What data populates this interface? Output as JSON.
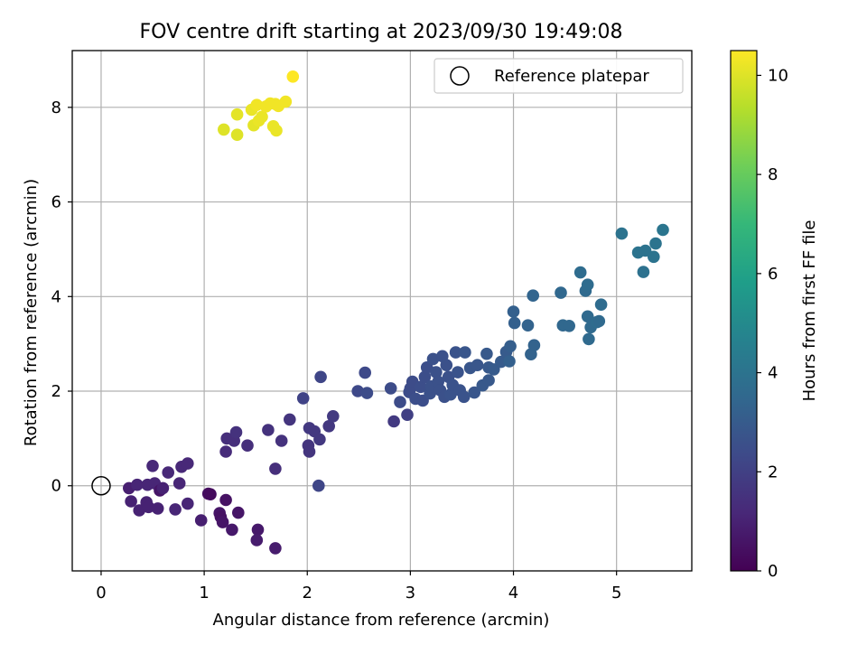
{
  "chart_data": {
    "type": "scatter",
    "title": "FOV centre drift starting at 2023/09/30 19:49:08",
    "xlabel": "Angular distance from reference (arcmin)",
    "ylabel": "Rotation from reference (arcmin)",
    "xlim": [
      -0.28,
      5.73
    ],
    "ylim": [
      -1.8,
      9.2
    ],
    "xticks": [
      0,
      1,
      2,
      3,
      4,
      5
    ],
    "yticks": [
      0,
      2,
      4,
      6,
      8
    ],
    "grid": true,
    "legend": {
      "placement": "top-right",
      "entries": [
        {
          "label": "Reference platepar",
          "marker": "open-circle"
        }
      ]
    },
    "reference_point": {
      "x": 0,
      "y": 0
    },
    "colorbar": {
      "label": "Hours from first FF file",
      "min": 0,
      "max": 10.5,
      "ticks": [
        0,
        2,
        4,
        6,
        8,
        10
      ],
      "colormap": "viridis",
      "stops": [
        "#440154",
        "#482878",
        "#3e4a89",
        "#31688e",
        "#26828e",
        "#1f9e89",
        "#35b779",
        "#6ece58",
        "#b5de2b",
        "#fde725"
      ]
    },
    "points": [
      {
        "x": 0.27,
        "y": -0.05,
        "t": 0.9
      },
      {
        "x": 0.29,
        "y": -0.33,
        "t": 1.0
      },
      {
        "x": 0.35,
        "y": 0.02,
        "t": 1.1
      },
      {
        "x": 0.37,
        "y": -0.52,
        "t": 1.0
      },
      {
        "x": 0.44,
        "y": -0.35,
        "t": 1.0
      },
      {
        "x": 0.45,
        "y": 0.02,
        "t": 1.1
      },
      {
        "x": 0.46,
        "y": -0.45,
        "t": 1.0
      },
      {
        "x": 0.5,
        "y": 0.42,
        "t": 1.2
      },
      {
        "x": 0.52,
        "y": 0.05,
        "t": 1.1
      },
      {
        "x": 0.55,
        "y": -0.48,
        "t": 1.0
      },
      {
        "x": 0.57,
        "y": -0.1,
        "t": 0.6
      },
      {
        "x": 0.6,
        "y": -0.05,
        "t": 1.0
      },
      {
        "x": 0.65,
        "y": 0.28,
        "t": 1.2
      },
      {
        "x": 0.72,
        "y": -0.5,
        "t": 1.1
      },
      {
        "x": 0.76,
        "y": 0.05,
        "t": 1.1
      },
      {
        "x": 0.78,
        "y": 0.4,
        "t": 1.2
      },
      {
        "x": 0.84,
        "y": 0.47,
        "t": 1.2
      },
      {
        "x": 0.84,
        "y": -0.38,
        "t": 1.1
      },
      {
        "x": 0.97,
        "y": -0.73,
        "t": 0.9
      },
      {
        "x": 1.04,
        "y": -0.17,
        "t": 0.4
      },
      {
        "x": 1.06,
        "y": -0.18,
        "t": 0.3
      },
      {
        "x": 1.15,
        "y": -0.58,
        "t": 0.6
      },
      {
        "x": 1.16,
        "y": -0.66,
        "t": 0.5
      },
      {
        "x": 1.18,
        "y": -0.77,
        "t": 0.6
      },
      {
        "x": 1.21,
        "y": -0.3,
        "t": 0.5
      },
      {
        "x": 1.27,
        "y": -0.93,
        "t": 0.7
      },
      {
        "x": 1.33,
        "y": -0.57,
        "t": 0.6
      },
      {
        "x": 1.52,
        "y": -0.93,
        "t": 0.7
      },
      {
        "x": 1.51,
        "y": -1.15,
        "t": 0.8
      },
      {
        "x": 1.69,
        "y": -1.32,
        "t": 0.8
      },
      {
        "x": 1.21,
        "y": 0.72,
        "t": 1.3
      },
      {
        "x": 1.22,
        "y": 1.0,
        "t": 1.4
      },
      {
        "x": 1.29,
        "y": 0.95,
        "t": 1.4
      },
      {
        "x": 1.31,
        "y": 1.13,
        "t": 1.5
      },
      {
        "x": 1.42,
        "y": 0.85,
        "t": 1.4
      },
      {
        "x": 1.62,
        "y": 1.18,
        "t": 1.5
      },
      {
        "x": 1.69,
        "y": 0.36,
        "t": 1.4
      },
      {
        "x": 1.75,
        "y": 0.95,
        "t": 1.5
      },
      {
        "x": 1.83,
        "y": 1.4,
        "t": 1.6
      },
      {
        "x": 2.01,
        "y": 0.85,
        "t": 1.6
      },
      {
        "x": 2.02,
        "y": 1.22,
        "t": 1.7
      },
      {
        "x": 2.02,
        "y": 0.72,
        "t": 1.6
      },
      {
        "x": 2.07,
        "y": 1.15,
        "t": 1.7
      },
      {
        "x": 2.12,
        "y": 0.98,
        "t": 1.7
      },
      {
        "x": 2.21,
        "y": 1.26,
        "t": 1.7
      },
      {
        "x": 2.25,
        "y": 1.47,
        "t": 1.8
      },
      {
        "x": 1.96,
        "y": 1.85,
        "t": 2.1
      },
      {
        "x": 2.11,
        "y": 0.0,
        "t": 2.2
      },
      {
        "x": 2.13,
        "y": 2.3,
        "t": 2.2
      },
      {
        "x": 2.49,
        "y": 2.0,
        "t": 2.3
      },
      {
        "x": 2.56,
        "y": 2.39,
        "t": 2.3
      },
      {
        "x": 2.58,
        "y": 1.96,
        "t": 2.4
      },
      {
        "x": 2.84,
        "y": 1.36,
        "t": 1.8
      },
      {
        "x": 2.81,
        "y": 2.06,
        "t": 2.4
      },
      {
        "x": 2.9,
        "y": 1.77,
        "t": 2.4
      },
      {
        "x": 2.97,
        "y": 1.5,
        "t": 2.0
      },
      {
        "x": 2.99,
        "y": 1.98,
        "t": 2.4
      },
      {
        "x": 3.0,
        "y": 2.06,
        "t": 2.4
      },
      {
        "x": 3.02,
        "y": 2.2,
        "t": 2.4
      },
      {
        "x": 3.05,
        "y": 1.84,
        "t": 2.5
      },
      {
        "x": 3.1,
        "y": 2.09,
        "t": 2.5
      },
      {
        "x": 3.12,
        "y": 1.8,
        "t": 2.5
      },
      {
        "x": 3.14,
        "y": 2.3,
        "t": 2.5
      },
      {
        "x": 3.16,
        "y": 2.5,
        "t": 2.5
      },
      {
        "x": 3.19,
        "y": 1.95,
        "t": 2.6
      },
      {
        "x": 3.2,
        "y": 2.1,
        "t": 2.6
      },
      {
        "x": 3.22,
        "y": 2.68,
        "t": 2.6
      },
      {
        "x": 3.25,
        "y": 2.4,
        "t": 2.6
      },
      {
        "x": 3.27,
        "y": 2.2,
        "t": 2.6
      },
      {
        "x": 3.29,
        "y": 2.02,
        "t": 2.6
      },
      {
        "x": 3.31,
        "y": 2.74,
        "t": 2.6
      },
      {
        "x": 3.33,
        "y": 1.88,
        "t": 2.6
      },
      {
        "x": 3.35,
        "y": 2.55,
        "t": 2.6
      },
      {
        "x": 3.37,
        "y": 2.3,
        "t": 2.6
      },
      {
        "x": 3.39,
        "y": 1.93,
        "t": 2.7
      },
      {
        "x": 3.41,
        "y": 2.13,
        "t": 2.7
      },
      {
        "x": 3.44,
        "y": 2.82,
        "t": 2.7
      },
      {
        "x": 3.46,
        "y": 2.4,
        "t": 2.7
      },
      {
        "x": 3.48,
        "y": 2.02,
        "t": 2.7
      },
      {
        "x": 3.52,
        "y": 1.88,
        "t": 2.7
      },
      {
        "x": 3.53,
        "y": 2.82,
        "t": 2.8
      },
      {
        "x": 3.58,
        "y": 2.49,
        "t": 2.8
      },
      {
        "x": 3.62,
        "y": 1.97,
        "t": 2.8
      },
      {
        "x": 3.65,
        "y": 2.55,
        "t": 2.8
      },
      {
        "x": 3.7,
        "y": 2.12,
        "t": 2.9
      },
      {
        "x": 3.74,
        "y": 2.79,
        "t": 2.9
      },
      {
        "x": 3.76,
        "y": 2.23,
        "t": 2.9
      },
      {
        "x": 3.76,
        "y": 2.5,
        "t": 2.9
      },
      {
        "x": 3.81,
        "y": 2.46,
        "t": 3.0
      },
      {
        "x": 3.88,
        "y": 2.62,
        "t": 3.0
      },
      {
        "x": 3.93,
        "y": 2.83,
        "t": 3.0
      },
      {
        "x": 3.97,
        "y": 2.95,
        "t": 3.1
      },
      {
        "x": 3.96,
        "y": 2.63,
        "t": 3.2
      },
      {
        "x": 4.0,
        "y": 3.68,
        "t": 3.2
      },
      {
        "x": 4.01,
        "y": 3.44,
        "t": 3.2
      },
      {
        "x": 4.14,
        "y": 3.39,
        "t": 3.3
      },
      {
        "x": 4.17,
        "y": 2.78,
        "t": 3.3
      },
      {
        "x": 4.2,
        "y": 2.97,
        "t": 3.3
      },
      {
        "x": 4.19,
        "y": 4.02,
        "t": 3.4
      },
      {
        "x": 4.46,
        "y": 4.08,
        "t": 3.5
      },
      {
        "x": 4.48,
        "y": 3.39,
        "t": 3.5
      },
      {
        "x": 4.54,
        "y": 3.38,
        "t": 3.5
      },
      {
        "x": 4.65,
        "y": 4.51,
        "t": 3.7
      },
      {
        "x": 4.7,
        "y": 4.12,
        "t": 3.6
      },
      {
        "x": 4.72,
        "y": 4.25,
        "t": 3.7
      },
      {
        "x": 4.72,
        "y": 3.58,
        "t": 3.6
      },
      {
        "x": 4.73,
        "y": 3.1,
        "t": 3.6
      },
      {
        "x": 4.75,
        "y": 3.35,
        "t": 3.6
      },
      {
        "x": 4.81,
        "y": 3.46,
        "t": 3.7
      },
      {
        "x": 4.83,
        "y": 3.48,
        "t": 3.6
      },
      {
        "x": 4.85,
        "y": 3.83,
        "t": 3.7
      },
      {
        "x": 5.05,
        "y": 5.33,
        "t": 4.0
      },
      {
        "x": 5.21,
        "y": 4.93,
        "t": 4.0
      },
      {
        "x": 5.26,
        "y": 4.52,
        "t": 3.9
      },
      {
        "x": 5.28,
        "y": 4.97,
        "t": 4.0
      },
      {
        "x": 5.36,
        "y": 4.84,
        "t": 4.0
      },
      {
        "x": 5.38,
        "y": 5.12,
        "t": 4.0
      },
      {
        "x": 5.45,
        "y": 5.41,
        "t": 4.1
      },
      {
        "x": 1.19,
        "y": 7.53,
        "t": 10.0
      },
      {
        "x": 1.32,
        "y": 7.85,
        "t": 10.1
      },
      {
        "x": 1.32,
        "y": 7.42,
        "t": 10.0
      },
      {
        "x": 1.46,
        "y": 7.95,
        "t": 10.2
      },
      {
        "x": 1.48,
        "y": 7.62,
        "t": 10.1
      },
      {
        "x": 1.51,
        "y": 8.05,
        "t": 10.3
      },
      {
        "x": 1.53,
        "y": 7.72,
        "t": 10.2
      },
      {
        "x": 1.56,
        "y": 7.8,
        "t": 10.2
      },
      {
        "x": 1.6,
        "y": 8.02,
        "t": 10.3
      },
      {
        "x": 1.64,
        "y": 8.08,
        "t": 10.3
      },
      {
        "x": 1.67,
        "y": 7.6,
        "t": 10.2
      },
      {
        "x": 1.69,
        "y": 8.07,
        "t": 10.3
      },
      {
        "x": 1.7,
        "y": 7.51,
        "t": 10.2
      },
      {
        "x": 1.72,
        "y": 8.03,
        "t": 10.3
      },
      {
        "x": 1.79,
        "y": 8.12,
        "t": 10.3
      },
      {
        "x": 1.86,
        "y": 8.65,
        "t": 10.5
      }
    ]
  }
}
